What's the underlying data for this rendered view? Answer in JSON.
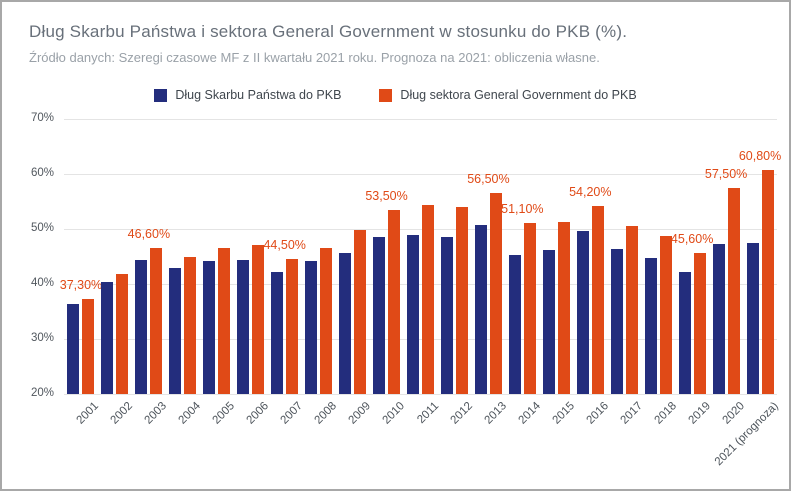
{
  "chart_data": {
    "type": "bar",
    "title": "Dług Skarbu Państwa i sektora General Government w stosunku do PKB (%).",
    "subtitle": "Źródło danych: Szeregi czasowe MF z II kwartału 2021 roku. Prognoza na 2021: obliczenia własne.",
    "categories": [
      "2001",
      "2002",
      "2003",
      "2004",
      "2005",
      "2006",
      "2007",
      "2008",
      "2009",
      "2010",
      "2011",
      "2012",
      "2013",
      "2014",
      "2015",
      "2016",
      "2017",
      "2018",
      "2019",
      "2020",
      "2021 (prognoza)"
    ],
    "series": [
      {
        "name": "Dług Skarbu Państwa do PKB",
        "color": "#232d7d",
        "values": [
          36.4,
          40.4,
          44.4,
          43.0,
          44.2,
          44.4,
          42.1,
          44.1,
          45.7,
          48.5,
          49.0,
          48.5,
          50.7,
          45.3,
          46.1,
          49.7,
          46.4,
          44.7,
          42.2,
          47.2,
          47.5
        ]
      },
      {
        "name": "Dług sektora General Government do PKB",
        "color": "#e04a17",
        "values": [
          37.3,
          41.8,
          46.6,
          44.9,
          46.5,
          47.1,
          44.5,
          46.6,
          49.8,
          53.5,
          54.4,
          54.0,
          56.5,
          51.1,
          51.3,
          54.2,
          50.5,
          48.7,
          45.6,
          57.5,
          60.8
        ]
      }
    ],
    "value_labels": [
      "37,30%",
      null,
      "46,60%",
      null,
      null,
      null,
      "44,50%",
      null,
      null,
      "53,50%",
      null,
      null,
      "56,50%",
      "51,10%",
      null,
      "54,20%",
      null,
      null,
      "45,60%",
      "57,50%",
      "60,80%"
    ],
    "value_label_color": "#e04a17",
    "ylim": [
      20,
      70
    ],
    "yticks": [
      70,
      60,
      50,
      40,
      30,
      20
    ],
    "ytick_suffix": "%",
    "grid": true,
    "legend_position": "top",
    "xlabel": "",
    "ylabel": ""
  }
}
